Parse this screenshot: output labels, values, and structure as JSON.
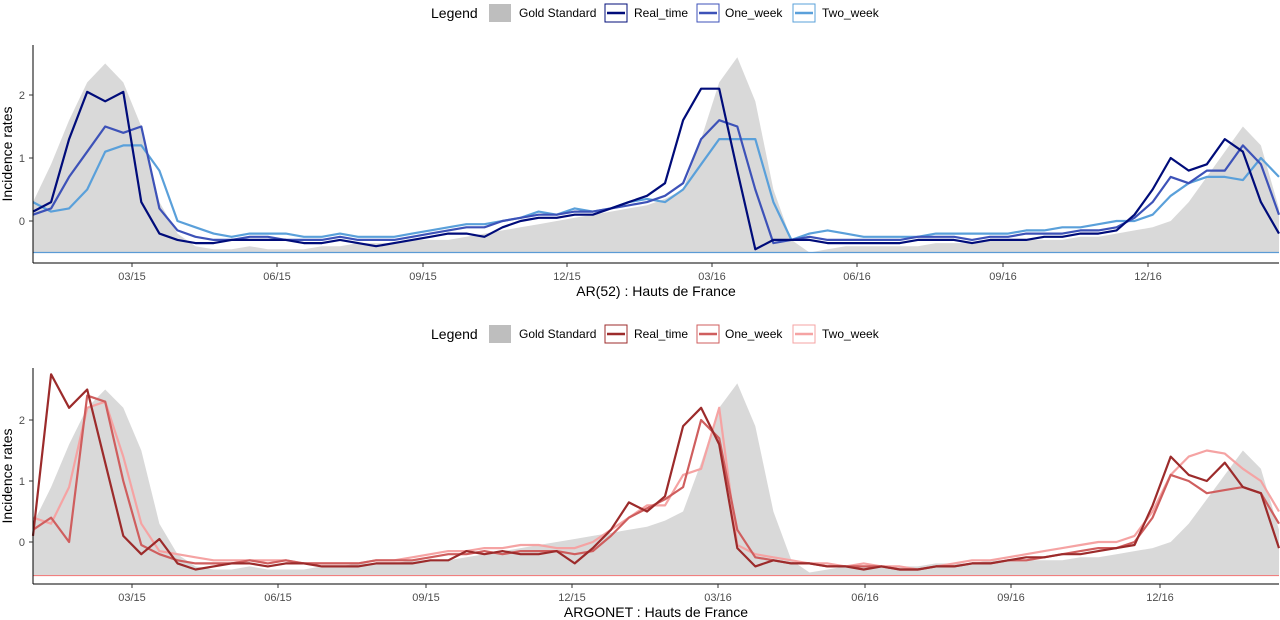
{
  "chart_data": [
    {
      "type": "line",
      "title": "",
      "xlabel": "AR(52) : Hauts de France",
      "ylabel": "Incidence rates",
      "legend": {
        "title": "Legend",
        "placement": "top",
        "entries": [
          "Gold Standard",
          "Real_time",
          "One_week",
          "Two_week"
        ]
      },
      "colors": {
        "gold": "#d9d9d9",
        "gold_key": "#bebebe",
        "baseline": "#5b9bd5",
        "series": [
          "#000c7a",
          "#3d52b8",
          "#5aa0da"
        ]
      },
      "x_ticks": [
        "03/15",
        "06/15",
        "09/15",
        "12/15",
        "03/16",
        "06/16",
        "09/16",
        "12/16"
      ],
      "y_ticks": [
        "0",
        "1",
        "2"
      ],
      "ylim": [
        -0.65,
        2.75
      ],
      "x_dates": "weekly",
      "baseline": -0.5,
      "gold_standard": [
        0.3,
        0.9,
        1.6,
        2.2,
        2.5,
        2.2,
        1.5,
        0.3,
        -0.2,
        -0.4,
        -0.45,
        -0.45,
        -0.4,
        -0.45,
        -0.45,
        -0.45,
        -0.4,
        -0.4,
        -0.35,
        -0.35,
        -0.35,
        -0.3,
        -0.3,
        -0.3,
        -0.25,
        -0.2,
        -0.15,
        -0.1,
        -0.05,
        0.0,
        0.05,
        0.1,
        0.15,
        0.2,
        0.25,
        0.35,
        0.5,
        1.3,
        2.2,
        2.6,
        1.9,
        0.5,
        -0.3,
        -0.5,
        -0.45,
        -0.4,
        -0.4,
        -0.4,
        -0.4,
        -0.4,
        -0.35,
        -0.35,
        -0.35,
        -0.3,
        -0.3,
        -0.3,
        -0.3,
        -0.3,
        -0.25,
        -0.25,
        -0.2,
        -0.15,
        -0.1,
        0.0,
        0.3,
        0.7,
        1.1,
        1.5,
        1.2,
        0.2
      ],
      "series": [
        {
          "name": "Real_time",
          "values": [
            0.15,
            0.3,
            1.3,
            2.05,
            1.9,
            2.05,
            0.3,
            -0.2,
            -0.3,
            -0.35,
            -0.35,
            -0.3,
            -0.3,
            -0.3,
            -0.3,
            -0.35,
            -0.35,
            -0.3,
            -0.35,
            -0.4,
            -0.35,
            -0.3,
            -0.25,
            -0.2,
            -0.2,
            -0.25,
            -0.1,
            0.0,
            0.05,
            0.05,
            0.1,
            0.1,
            0.2,
            0.3,
            0.4,
            0.6,
            1.6,
            2.1,
            2.1,
            0.8,
            -0.45,
            -0.3,
            -0.3,
            -0.3,
            -0.35,
            -0.35,
            -0.35,
            -0.35,
            -0.35,
            -0.3,
            -0.3,
            -0.3,
            -0.35,
            -0.3,
            -0.3,
            -0.3,
            -0.25,
            -0.25,
            -0.2,
            -0.2,
            -0.15,
            0.1,
            0.5,
            1.0,
            0.8,
            0.9,
            1.3,
            1.1,
            0.3,
            -0.2
          ]
        },
        {
          "name": "One_week",
          "values": [
            0.1,
            0.2,
            0.7,
            1.1,
            1.5,
            1.4,
            1.5,
            0.2,
            -0.15,
            -0.25,
            -0.3,
            -0.3,
            -0.25,
            -0.25,
            -0.3,
            -0.3,
            -0.3,
            -0.25,
            -0.3,
            -0.3,
            -0.3,
            -0.25,
            -0.2,
            -0.15,
            -0.1,
            -0.1,
            0.0,
            0.05,
            0.1,
            0.1,
            0.15,
            0.15,
            0.2,
            0.25,
            0.3,
            0.4,
            0.6,
            1.3,
            1.6,
            1.5,
            0.5,
            -0.35,
            -0.3,
            -0.25,
            -0.3,
            -0.3,
            -0.3,
            -0.3,
            -0.3,
            -0.25,
            -0.25,
            -0.25,
            -0.3,
            -0.25,
            -0.25,
            -0.2,
            -0.2,
            -0.2,
            -0.15,
            -0.15,
            -0.1,
            0.05,
            0.3,
            0.7,
            0.6,
            0.8,
            0.8,
            1.2,
            0.9,
            0.1
          ]
        },
        {
          "name": "Two_week",
          "values": [
            0.3,
            0.15,
            0.2,
            0.5,
            1.1,
            1.2,
            1.2,
            0.8,
            0.0,
            -0.1,
            -0.2,
            -0.25,
            -0.2,
            -0.2,
            -0.2,
            -0.25,
            -0.25,
            -0.2,
            -0.25,
            -0.25,
            -0.25,
            -0.2,
            -0.15,
            -0.1,
            -0.05,
            -0.05,
            0.0,
            0.05,
            0.15,
            0.1,
            0.2,
            0.15,
            0.2,
            0.3,
            0.35,
            0.3,
            0.5,
            0.9,
            1.3,
            1.3,
            1.3,
            0.3,
            -0.3,
            -0.2,
            -0.15,
            -0.2,
            -0.25,
            -0.25,
            -0.25,
            -0.25,
            -0.2,
            -0.2,
            -0.2,
            -0.2,
            -0.2,
            -0.15,
            -0.15,
            -0.1,
            -0.1,
            -0.05,
            0.0,
            0.0,
            0.1,
            0.4,
            0.6,
            0.7,
            0.7,
            0.65,
            1.0,
            0.7
          ]
        }
      ]
    },
    {
      "type": "line",
      "title": "",
      "xlabel": "ARGONET : Hauts de France",
      "ylabel": "Incidence rates",
      "legend": {
        "title": "Legend",
        "placement": "top",
        "entries": [
          "Gold Standard",
          "Real_time",
          "One_week",
          "Two_week"
        ]
      },
      "colors": {
        "gold": "#d9d9d9",
        "gold_key": "#bebebe",
        "baseline": "#f08080",
        "series": [
          "#9c2b2b",
          "#cf5e5e",
          "#f5a3a3"
        ]
      },
      "x_ticks": [
        "03/15",
        "06/15",
        "09/15",
        "12/15",
        "03/16",
        "06/16",
        "09/16",
        "12/16"
      ],
      "y_ticks": [
        "0",
        "1",
        "2"
      ],
      "ylim": [
        -0.65,
        2.8
      ],
      "x_dates": "weekly",
      "baseline": -0.55,
      "gold_standard": [
        0.3,
        0.9,
        1.6,
        2.2,
        2.5,
        2.2,
        1.5,
        0.3,
        -0.2,
        -0.4,
        -0.45,
        -0.45,
        -0.4,
        -0.45,
        -0.45,
        -0.45,
        -0.4,
        -0.4,
        -0.35,
        -0.35,
        -0.35,
        -0.3,
        -0.3,
        -0.3,
        -0.25,
        -0.2,
        -0.15,
        -0.1,
        -0.05,
        0.0,
        0.05,
        0.1,
        0.15,
        0.2,
        0.25,
        0.35,
        0.5,
        1.3,
        2.2,
        2.6,
        1.9,
        0.5,
        -0.3,
        -0.5,
        -0.45,
        -0.4,
        -0.4,
        -0.4,
        -0.4,
        -0.4,
        -0.35,
        -0.35,
        -0.35,
        -0.3,
        -0.3,
        -0.3,
        -0.3,
        -0.3,
        -0.25,
        -0.25,
        -0.2,
        -0.15,
        -0.1,
        0.0,
        0.3,
        0.7,
        1.1,
        1.5,
        1.2,
        0.2
      ],
      "series": [
        {
          "name": "Real_time",
          "values": [
            0.1,
            2.75,
            2.2,
            2.5,
            1.3,
            0.1,
            -0.2,
            0.05,
            -0.35,
            -0.45,
            -0.4,
            -0.35,
            -0.35,
            -0.4,
            -0.35,
            -0.35,
            -0.4,
            -0.4,
            -0.4,
            -0.35,
            -0.35,
            -0.35,
            -0.3,
            -0.3,
            -0.15,
            -0.2,
            -0.15,
            -0.2,
            -0.2,
            -0.15,
            -0.35,
            -0.1,
            0.2,
            0.65,
            0.5,
            0.75,
            1.9,
            2.2,
            1.6,
            -0.1,
            -0.4,
            -0.3,
            -0.35,
            -0.35,
            -0.4,
            -0.4,
            -0.45,
            -0.4,
            -0.45,
            -0.45,
            -0.4,
            -0.4,
            -0.35,
            -0.35,
            -0.3,
            -0.25,
            -0.25,
            -0.2,
            -0.2,
            -0.15,
            -0.1,
            -0.05,
            0.6,
            1.4,
            1.1,
            1.0,
            1.3,
            0.9,
            0.8,
            -0.1
          ]
        },
        {
          "name": "One_week",
          "values": [
            0.2,
            0.4,
            0.0,
            2.4,
            2.3,
            1.0,
            -0.05,
            -0.2,
            -0.3,
            -0.35,
            -0.35,
            -0.35,
            -0.3,
            -0.35,
            -0.3,
            -0.35,
            -0.35,
            -0.35,
            -0.35,
            -0.3,
            -0.3,
            -0.3,
            -0.25,
            -0.2,
            -0.2,
            -0.15,
            -0.2,
            -0.15,
            -0.15,
            -0.15,
            -0.2,
            -0.15,
            0.1,
            0.4,
            0.55,
            0.7,
            0.9,
            2.0,
            1.7,
            0.2,
            -0.25,
            -0.3,
            -0.35,
            -0.35,
            -0.4,
            -0.4,
            -0.4,
            -0.4,
            -0.45,
            -0.45,
            -0.4,
            -0.4,
            -0.35,
            -0.35,
            -0.3,
            -0.3,
            -0.25,
            -0.2,
            -0.15,
            -0.1,
            -0.1,
            0.0,
            0.4,
            1.1,
            1.0,
            0.8,
            0.85,
            0.9,
            0.8,
            0.3
          ]
        },
        {
          "name": "Two_week",
          "values": [
            0.4,
            0.3,
            0.9,
            2.2,
            2.3,
            1.4,
            0.3,
            -0.15,
            -0.2,
            -0.25,
            -0.3,
            -0.3,
            -0.3,
            -0.3,
            -0.3,
            -0.35,
            -0.35,
            -0.35,
            -0.35,
            -0.3,
            -0.3,
            -0.25,
            -0.2,
            -0.15,
            -0.15,
            -0.1,
            -0.1,
            -0.05,
            -0.05,
            -0.1,
            -0.1,
            0.0,
            0.2,
            0.4,
            0.6,
            0.6,
            1.1,
            1.2,
            2.2,
            -0.05,
            -0.2,
            -0.25,
            -0.3,
            -0.35,
            -0.35,
            -0.4,
            -0.35,
            -0.4,
            -0.4,
            -0.45,
            -0.4,
            -0.35,
            -0.3,
            -0.3,
            -0.25,
            -0.2,
            -0.15,
            -0.1,
            -0.05,
            0.0,
            0.0,
            0.1,
            0.5,
            1.1,
            1.4,
            1.5,
            1.45,
            1.2,
            1.0,
            0.5
          ]
        }
      ]
    }
  ]
}
